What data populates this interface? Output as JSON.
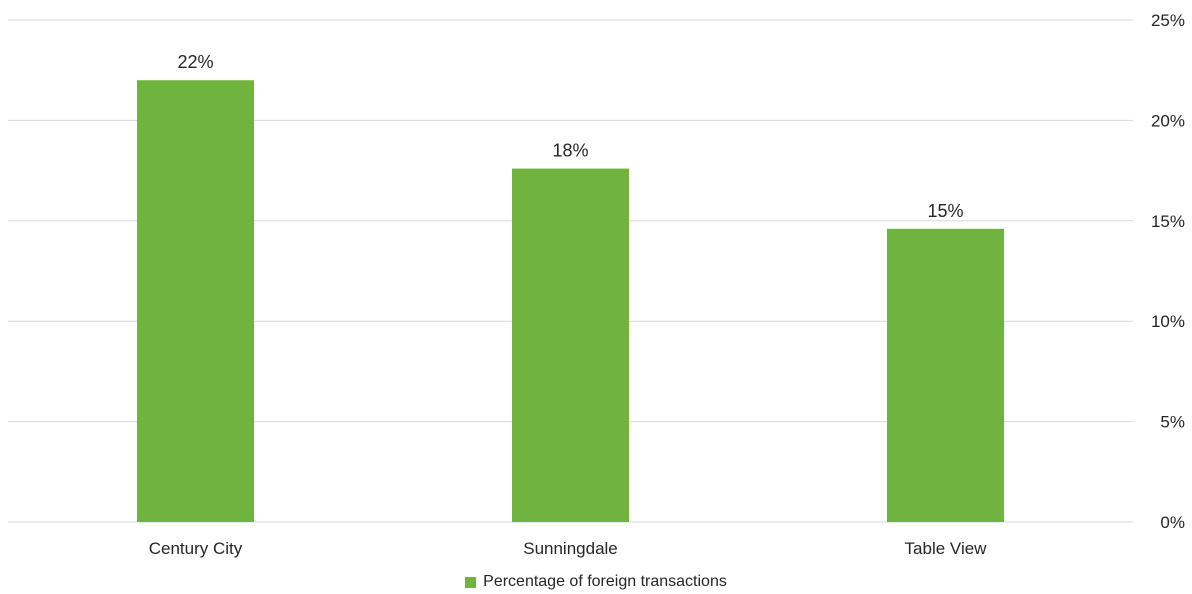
{
  "chart_data": {
    "type": "bar",
    "title": "",
    "xlabel": "",
    "ylabel": "",
    "categories": [
      "Century City",
      "Sunningdale",
      "Table View"
    ],
    "series": [
      {
        "name": "Percentage of foreign transactions",
        "values": [
          22,
          17.6,
          14.6
        ],
        "data_labels": [
          "22%",
          "18%",
          "15%"
        ],
        "color": "#70b33f"
      }
    ],
    "ylim": [
      0,
      25
    ],
    "yticks": [
      0,
      5,
      10,
      15,
      20,
      25
    ],
    "ytick_labels": [
      "0%",
      "5%",
      "10%",
      "15%",
      "20%",
      "25%"
    ],
    "y_axis_side": "right",
    "grid": true,
    "legend_position": "bottom"
  }
}
